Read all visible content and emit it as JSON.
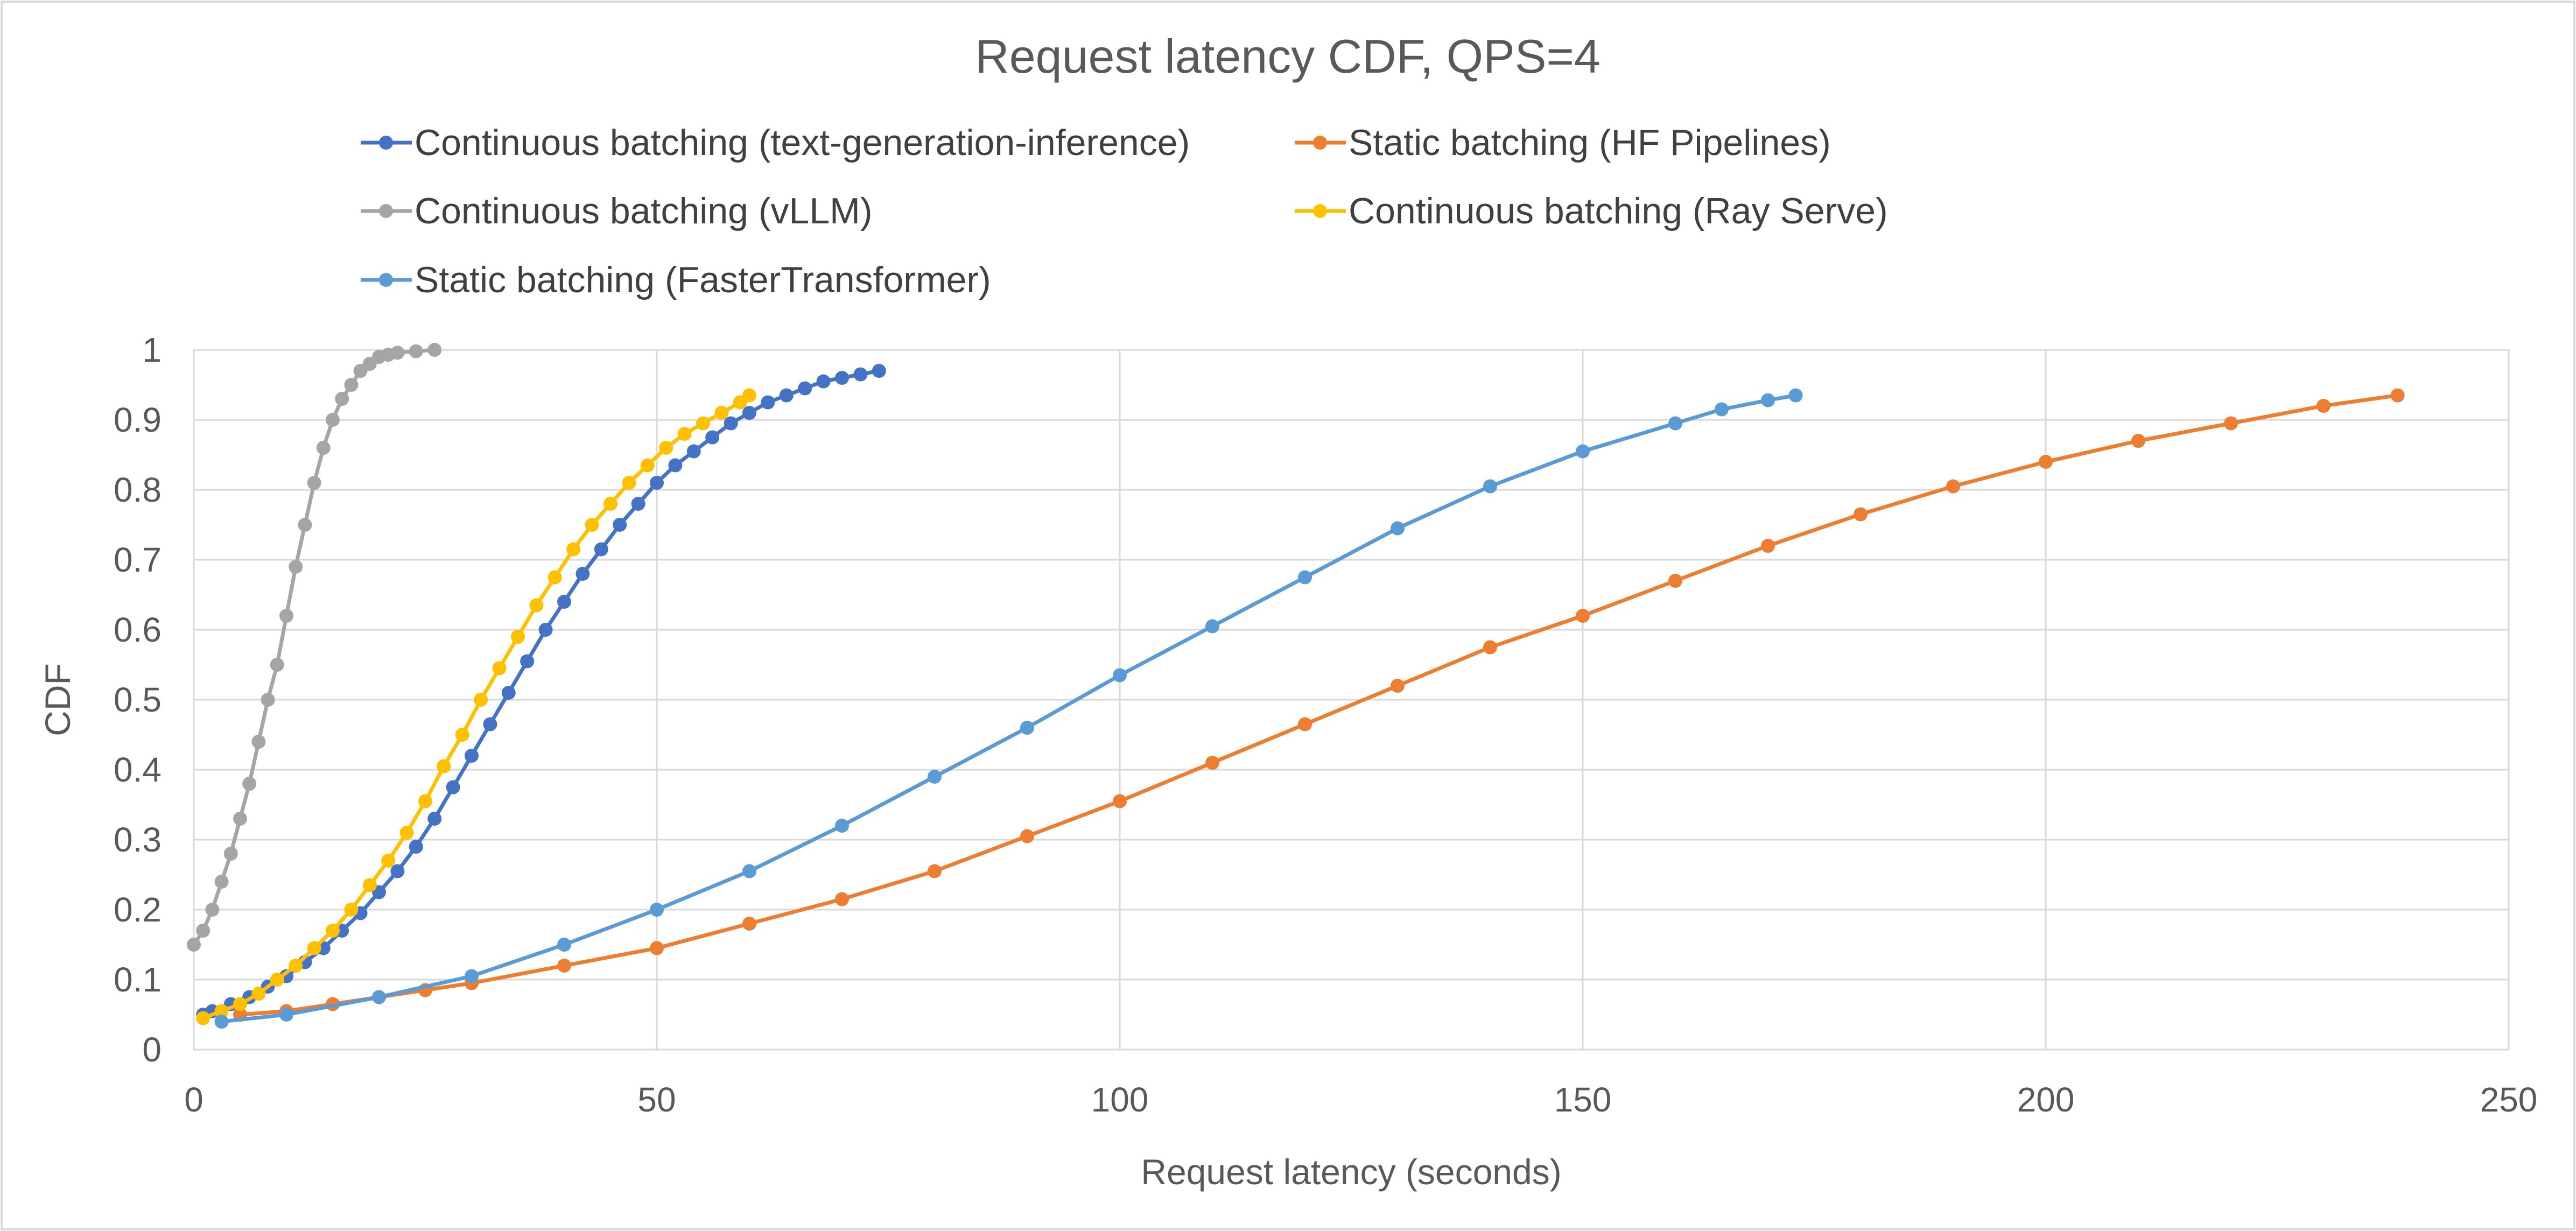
{
  "chart_data": {
    "type": "line",
    "title": "Request latency CDF, QPS=4",
    "xlabel": "Request latency (seconds)",
    "ylabel": "CDF",
    "xlim": [
      0,
      250
    ],
    "ylim": [
      0,
      1
    ],
    "xticks": [
      "0",
      "50",
      "100",
      "150",
      "200",
      "250"
    ],
    "yticks": [
      "0",
      "0.1",
      "0.2",
      "0.3",
      "0.4",
      "0.5",
      "0.6",
      "0.7",
      "0.8",
      "0.9",
      "1"
    ],
    "grid": true,
    "legend_position": "top",
    "series": [
      {
        "name": "Continuous batching (text-generation-inference)",
        "color": "#4472C4",
        "x": [
          1,
          2,
          4,
          6,
          8,
          10,
          12,
          14,
          16,
          18,
          20,
          22,
          24,
          26,
          28,
          30,
          32,
          34,
          36,
          38,
          40,
          42,
          44,
          46,
          48,
          50,
          52,
          54,
          56,
          58,
          60,
          62,
          64,
          66,
          68,
          70,
          72,
          74
        ],
        "y": [
          0.05,
          0.055,
          0.065,
          0.075,
          0.09,
          0.105,
          0.125,
          0.145,
          0.17,
          0.195,
          0.225,
          0.255,
          0.29,
          0.33,
          0.375,
          0.42,
          0.465,
          0.51,
          0.555,
          0.6,
          0.64,
          0.68,
          0.715,
          0.75,
          0.78,
          0.81,
          0.835,
          0.855,
          0.875,
          0.895,
          0.91,
          0.925,
          0.935,
          0.945,
          0.955,
          0.96,
          0.965,
          0.97
        ]
      },
      {
        "name": "Static batching (HF Pipelines)",
        "color": "#ED7D31",
        "x": [
          5,
          10,
          15,
          20,
          25,
          30,
          40,
          50,
          60,
          70,
          80,
          90,
          100,
          110,
          120,
          130,
          140,
          150,
          160,
          170,
          180,
          190,
          200,
          210,
          220,
          230,
          238
        ],
        "y": [
          0.05,
          0.055,
          0.065,
          0.075,
          0.085,
          0.095,
          0.12,
          0.145,
          0.18,
          0.215,
          0.255,
          0.305,
          0.355,
          0.41,
          0.465,
          0.52,
          0.575,
          0.62,
          0.67,
          0.72,
          0.765,
          0.805,
          0.84,
          0.87,
          0.895,
          0.92,
          0.935
        ]
      },
      {
        "name": "Continuous batching (vLLM)",
        "color": "#A5A5A5",
        "x": [
          0,
          1,
          2,
          3,
          4,
          5,
          6,
          7,
          8,
          9,
          10,
          11,
          12,
          13,
          14,
          15,
          16,
          17,
          18,
          19,
          20,
          21,
          22,
          24,
          26
        ],
        "y": [
          0.15,
          0.17,
          0.2,
          0.24,
          0.28,
          0.33,
          0.38,
          0.44,
          0.5,
          0.55,
          0.62,
          0.69,
          0.75,
          0.81,
          0.86,
          0.9,
          0.93,
          0.95,
          0.97,
          0.98,
          0.99,
          0.993,
          0.996,
          0.998,
          1.0
        ]
      },
      {
        "name": "Continuous batching (Ray Serve)",
        "color": "#FFC000",
        "x": [
          1,
          3,
          5,
          7,
          9,
          11,
          13,
          15,
          17,
          19,
          21,
          23,
          25,
          27,
          29,
          31,
          33,
          35,
          37,
          39,
          41,
          43,
          45,
          47,
          49,
          51,
          53,
          55,
          57,
          59,
          60
        ],
        "y": [
          0.045,
          0.055,
          0.065,
          0.08,
          0.1,
          0.12,
          0.145,
          0.17,
          0.2,
          0.235,
          0.27,
          0.31,
          0.355,
          0.405,
          0.45,
          0.5,
          0.545,
          0.59,
          0.635,
          0.675,
          0.715,
          0.75,
          0.78,
          0.81,
          0.835,
          0.86,
          0.88,
          0.895,
          0.91,
          0.925,
          0.935
        ]
      },
      {
        "name": "Static batching (FasterTransformer)",
        "color": "#5B9BD5",
        "x": [
          3,
          10,
          20,
          30,
          40,
          50,
          60,
          70,
          80,
          90,
          100,
          110,
          120,
          130,
          140,
          150,
          160,
          165,
          170,
          173
        ],
        "y": [
          0.04,
          0.05,
          0.075,
          0.105,
          0.15,
          0.2,
          0.255,
          0.32,
          0.39,
          0.46,
          0.535,
          0.605,
          0.675,
          0.745,
          0.805,
          0.855,
          0.895,
          0.915,
          0.928,
          0.935
        ]
      }
    ]
  }
}
